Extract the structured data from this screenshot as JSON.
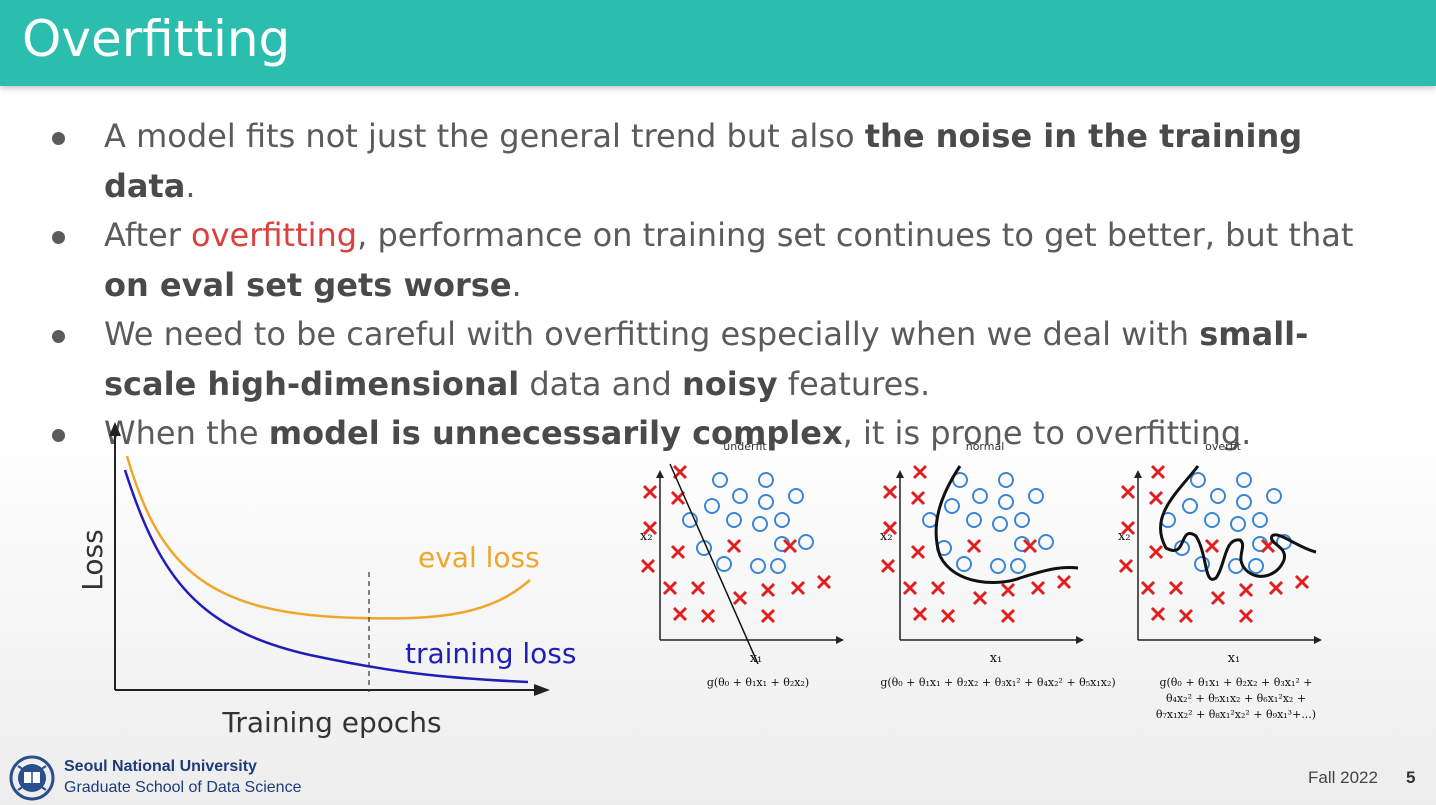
{
  "slide": {
    "title": "Overfitting",
    "bullets": [
      {
        "parts": [
          {
            "text": "A model fits not just the general trend but also ",
            "style": "normal"
          },
          {
            "text": "the noise in the training data",
            "style": "bold"
          },
          {
            "text": ".",
            "style": "normal"
          }
        ]
      },
      {
        "parts": [
          {
            "text": "After ",
            "style": "normal"
          },
          {
            "text": "overfitting",
            "style": "red"
          },
          {
            "text": ", performance on training set continues to get better, but that ",
            "style": "normal"
          },
          {
            "text": "on eval set gets worse",
            "style": "bold"
          },
          {
            "text": ".",
            "style": "normal"
          }
        ]
      },
      {
        "parts": [
          {
            "text": "We need to be careful with overfitting especially when we deal with ",
            "style": "normal"
          },
          {
            "text": "small-scale high-dimensional",
            "style": "bold"
          },
          {
            "text": " data and ",
            "style": "normal"
          },
          {
            "text": "noisy",
            "style": "bold"
          },
          {
            "text": " features.",
            "style": "normal"
          }
        ]
      },
      {
        "parts": [
          {
            "text": "When the ",
            "style": "normal"
          },
          {
            "text": "model is unnecessarily complex",
            "style": "bold"
          },
          {
            "text": ", it is prone to overfitting.",
            "style": "normal"
          }
        ]
      }
    ]
  },
  "loss_plot": {
    "ylabel": "Loss",
    "xlabel": "Training epochs",
    "eval_label": "eval loss",
    "train_label": "training loss",
    "eval_color": "#f0a52b",
    "train_color": "#1f1fb8"
  },
  "fit_panels": [
    {
      "title": "underfit",
      "formula": [
        "g(θ₀ + θ₁x₁ + θ₂x₂)"
      ]
    },
    {
      "title": "normal",
      "formula": [
        "g(θ₀ + θ₁x₁ + θ₂x₂ + θ₃x₁² + θ₄x₂² + θ₅x₁x₂)"
      ]
    },
    {
      "title": "overfit",
      "formula": [
        "g(θ₀ + θ₁x₁ + θ₂x₂ + θ₃x₁² +",
        "θ₄x₂² + θ₅x₁x₂ + θ₆x₁²x₂ +",
        "θ₇x₁x₂² + θ₈x₁²x₂² + θ₉x₁³+...)"
      ]
    }
  ],
  "axis_labels": {
    "x": "x₁",
    "y": "x₂"
  },
  "footer": {
    "university": "Seoul National University",
    "school": "Graduate School of Data Science",
    "term": "Fall 2022",
    "page": "5",
    "logo_icon": "snu-emblem-icon"
  },
  "colors": {
    "header": "#2bbdad",
    "accent_red": "#d9413d",
    "cross": "#e02020",
    "circle": "#3b86d6"
  }
}
